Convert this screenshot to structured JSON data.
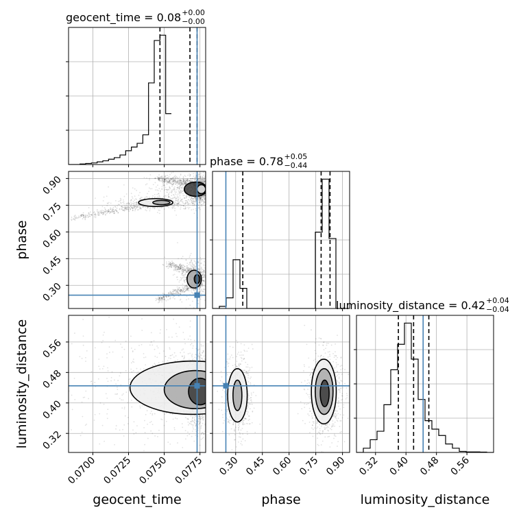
{
  "chart_data": {
    "type": "corner",
    "colors": {
      "truth": "#4682b4",
      "hist": "#000000",
      "grid": "#b0b0b0"
    },
    "parameters": [
      {
        "key": "geocent_time",
        "axis_label": "geocent_time",
        "title": {
          "prefix": "geocent_time = 0.08",
          "sup": "+0.00",
          "sub": "−0.00"
        },
        "range": [
          0.0683,
          0.0779
        ],
        "ticks": [
          0.07,
          0.0725,
          0.075,
          0.0775
        ],
        "tick_labels": [
          "0.0700",
          "0.0725",
          "0.0750",
          "0.0775"
        ],
        "truth": 0.0773,
        "quantiles": [
          0.0747,
          0.0768,
          0.0773
        ],
        "hist": {
          "edges_start": 0.0683,
          "bin_width": 0.0004,
          "counts": [
            0,
            0,
            0.5,
            1,
            1.5,
            2.5,
            3.5,
            5,
            6.5,
            9,
            13,
            16.5,
            20,
            28,
            77,
            117,
            122,
            48
          ]
        }
      },
      {
        "key": "phase",
        "axis_label": "phase",
        "title": {
          "prefix": "phase = 0.78",
          "sup": "+0.05",
          "sub": "−0.44"
        },
        "range": [
          0.17,
          0.94
        ],
        "ticks": [
          0.3,
          0.45,
          0.6,
          0.75,
          0.9
        ],
        "tick_labels": [
          "0.30",
          "0.45",
          "0.60",
          "0.75",
          "0.90"
        ],
        "truth": 0.245,
        "quantiles": [
          0.34,
          0.78,
          0.83
        ],
        "hist": {
          "edges_start": 0.17,
          "bin_width": 0.0385,
          "counts": [
            0,
            2,
            10,
            46,
            19,
            0,
            0,
            0,
            0,
            0,
            0,
            0,
            0,
            0,
            0,
            72,
            122,
            66,
            0,
            0
          ]
        }
      },
      {
        "key": "luminosity_distance",
        "axis_label": "luminosity_distance",
        "title": {
          "prefix": "luminosity_distance = 0.42",
          "sup": "+0.04",
          "sub": "−0.04"
        },
        "range": [
          0.27,
          0.63
        ],
        "ticks": [
          0.32,
          0.4,
          0.48,
          0.56
        ],
        "tick_labels": [
          "0.32",
          "0.40",
          "0.48",
          "0.56"
        ],
        "truth": 0.445,
        "quantiles": [
          0.38,
          0.42,
          0.46
        ],
        "hist": {
          "edges_start": 0.27,
          "bin_width": 0.018,
          "counts": [
            0,
            4,
            12,
            20,
            45,
            78,
            102,
            122,
            88,
            50,
            30,
            22,
            16,
            8,
            4,
            1,
            0.5,
            0.5,
            0.3,
            0
          ]
        }
      }
    ],
    "pairs": [
      {
        "x": "geocent_time",
        "y": "phase",
        "density_blobs": [
          {
            "x": 0.0776,
            "y": 0.84,
            "sx": 0.0003,
            "sy": 0.025,
            "w": 1.0
          },
          {
            "x": 0.0765,
            "y": 0.845,
            "sx": 0.0009,
            "sy": 0.03,
            "w": 0.5
          },
          {
            "x": 0.0745,
            "y": 0.765,
            "sx": 0.0009,
            "sy": 0.012,
            "w": 0.45
          },
          {
            "x": 0.0772,
            "y": 0.34,
            "sx": 0.0004,
            "sy": 0.035,
            "w": 0.55
          }
        ],
        "streaks": [
          {
            "from": [
              0.0686,
              0.68
            ],
            "to": [
              0.0745,
              0.76
            ]
          },
          {
            "from": [
              0.0745,
              0.9
            ],
            "to": [
              0.0776,
              0.86
            ]
          },
          {
            "from": [
              0.0745,
              0.22
            ],
            "to": [
              0.0776,
              0.31
            ]
          },
          {
            "from": [
              0.0752,
              0.42
            ],
            "to": [
              0.0776,
              0.36
            ]
          }
        ],
        "contours": [
          {
            "cx": 0.0744,
            "cy": 0.765,
            "rx": 0.0012,
            "ry": 0.022
          },
          {
            "cx": 0.0748,
            "cy": 0.765,
            "rx": 0.0006,
            "ry": 0.012
          },
          {
            "cx": 0.0772,
            "cy": 0.84,
            "rx": 0.0008,
            "ry": 0.04
          },
          {
            "cx": 0.0776,
            "cy": 0.84,
            "rx": 0.0003,
            "ry": 0.025
          },
          {
            "cx": 0.0771,
            "cy": 0.335,
            "rx": 0.0005,
            "ry": 0.05
          },
          {
            "cx": 0.0773,
            "cy": 0.335,
            "rx": 0.0002,
            "ry": 0.025
          }
        ]
      },
      {
        "x": "geocent_time",
        "y": "luminosity_distance",
        "density_blobs": [
          {
            "x": 0.0774,
            "y": 0.43,
            "sx": 0.0003,
            "sy": 0.03,
            "w": 1.0
          },
          {
            "x": 0.0762,
            "y": 0.44,
            "sx": 0.0012,
            "sy": 0.04,
            "w": 0.55
          },
          {
            "x": 0.073,
            "y": 0.45,
            "sx": 0.0025,
            "sy": 0.05,
            "w": 0.3
          }
        ],
        "contours": [
          {
            "cx": 0.077,
            "cy": 0.44,
            "rx": 0.0044,
            "ry": 0.07
          },
          {
            "cx": 0.0772,
            "cy": 0.435,
            "rx": 0.0022,
            "ry": 0.05
          },
          {
            "cx": 0.0775,
            "cy": 0.43,
            "rx": 0.0008,
            "ry": 0.035
          }
        ]
      },
      {
        "x": "phase",
        "y": "luminosity_distance",
        "density_blobs": [
          {
            "x": 0.8,
            "y": 0.425,
            "sx": 0.03,
            "sy": 0.035,
            "w": 1.0
          },
          {
            "x": 0.315,
            "y": 0.42,
            "sx": 0.025,
            "sy": 0.035,
            "w": 0.6
          }
        ],
        "contours": [
          {
            "cx": 0.795,
            "cy": 0.43,
            "rx": 0.07,
            "ry": 0.085
          },
          {
            "cx": 0.797,
            "cy": 0.43,
            "rx": 0.05,
            "ry": 0.06
          },
          {
            "cx": 0.8,
            "cy": 0.425,
            "rx": 0.025,
            "ry": 0.035
          },
          {
            "cx": 0.31,
            "cy": 0.42,
            "rx": 0.055,
            "ry": 0.07
          },
          {
            "cx": 0.31,
            "cy": 0.42,
            "rx": 0.025,
            "ry": 0.04
          }
        ]
      }
    ]
  }
}
